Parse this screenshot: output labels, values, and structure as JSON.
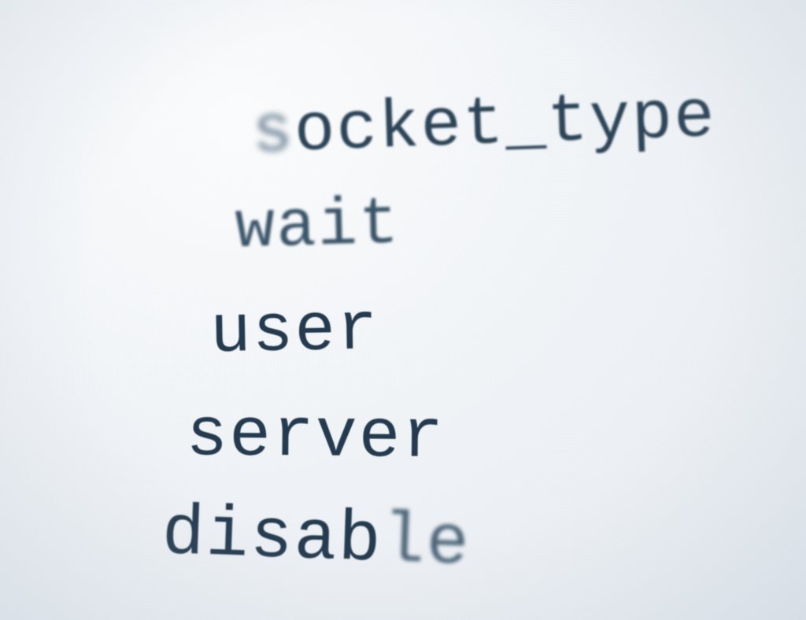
{
  "paper": {
    "background_color": "#eef2f5",
    "ink_color": "#243a4f"
  },
  "lines": [
    {
      "pre": "s",
      "text": "ocket_type"
    },
    {
      "text": "wait"
    },
    {
      "text": "user"
    },
    {
      "text": "server"
    },
    {
      "text": "disab",
      "post": "le"
    }
  ]
}
